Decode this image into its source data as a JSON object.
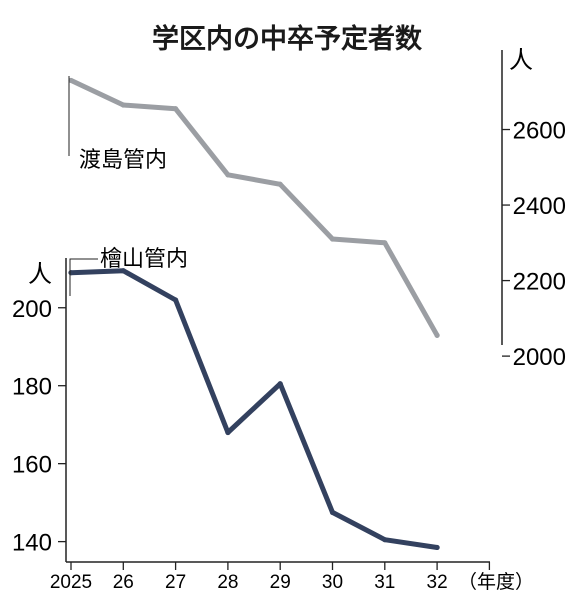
{
  "chart_data": {
    "type": "line",
    "title": "学区内の中卒予定者数",
    "x": [
      "2025",
      "26",
      "27",
      "28",
      "29",
      "30",
      "31",
      "32"
    ],
    "xlabel": "（年度）",
    "series": [
      {
        "name": "渡島管内",
        "axis": "right",
        "color": "#9b9ea3",
        "values": [
          2730,
          2665,
          2655,
          2480,
          2455,
          2310,
          2300,
          2055
        ]
      },
      {
        "name": "檜山管内",
        "axis": "left",
        "color": "#33415f",
        "values": [
          209,
          209.5,
          202,
          168,
          180.5,
          147.5,
          140.5,
          138.5
        ]
      }
    ],
    "left_axis": {
      "unit": "人",
      "ylim": [
        134,
        222
      ],
      "ticks": [
        "200",
        "180",
        "160",
        "140"
      ]
    },
    "right_axis": {
      "unit": "人",
      "ylim": [
        1995,
        2800
      ],
      "ticks": [
        "2600",
        "2400",
        "2200",
        "2000"
      ]
    },
    "grid": false
  }
}
